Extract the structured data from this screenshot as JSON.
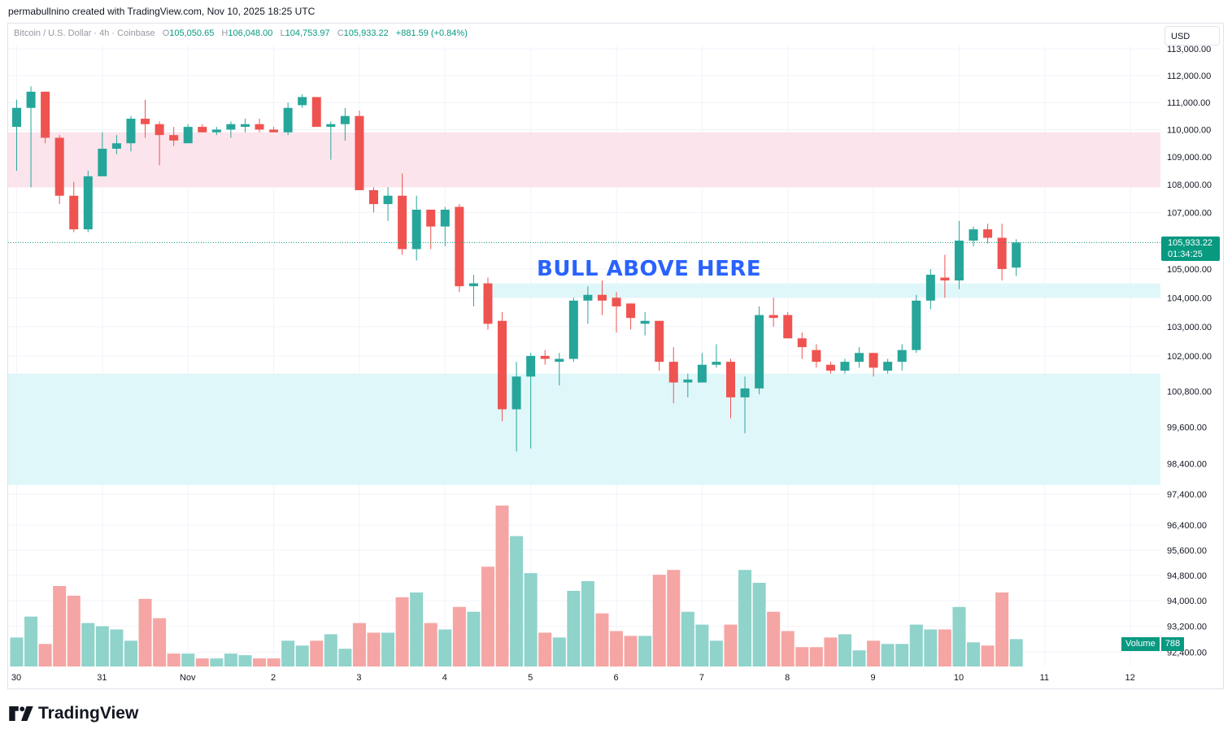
{
  "header": {
    "attribution": "permabullnino created with TradingView.com, Nov 10, 2025 18:25 UTC"
  },
  "legend": {
    "symbol": "Bitcoin / U.S. Dollar · 4h · Coinbase",
    "o_label": "O",
    "o_value": "105,050.65",
    "h_label": "H",
    "h_value": "106,048.00",
    "l_label": "L",
    "l_value": "104,753.97",
    "c_label": "C",
    "c_value": "105,933.22",
    "change": "+881.59 (+0.84%)"
  },
  "currency_button": {
    "label": "USD"
  },
  "last_price": {
    "price": "105,933.22",
    "countdown": "01:34:25"
  },
  "volume_tag": {
    "label": "Volume",
    "value": "788"
  },
  "annotation": {
    "text": "BULL ABOVE HERE"
  },
  "logo": {
    "text": "TradingView",
    "icon": "tradingview-logo-icon"
  },
  "colors": {
    "up": "#26a69a",
    "down": "#ef5350",
    "up_volume": "#8fd3cb",
    "down_volume": "#f5a5a3",
    "resistance_zone": "#fce4ec",
    "support_zone": "#e0f7fa",
    "annotation": "#2962ff",
    "price_line": "#089981"
  },
  "chart_data": {
    "type": "candlestick",
    "interval": "4h",
    "x_ticks": [
      "30",
      "31",
      "Nov",
      "2",
      "3",
      "4",
      "5",
      "6",
      "7",
      "8",
      "9",
      "10",
      "11",
      "12"
    ],
    "y_tick_labels": [
      "113,000.00",
      "112,000.00",
      "111,000.00",
      "110,000.00",
      "109,000.00",
      "108,000.00",
      "107,000.00",
      "105,000.00",
      "104,000.00",
      "103,000.00",
      "102,000.00",
      "100,800.00",
      "99,600.00",
      "98,400.00",
      "97,400.00",
      "96,400.00",
      "95,600.00",
      "94,800.00",
      "94,000.00",
      "93,200.00",
      "92,400.00"
    ],
    "y_tick_values": [
      113000,
      112000,
      111000,
      110000,
      109000,
      108000,
      107000,
      105000,
      104000,
      103000,
      102000,
      100800,
      99600,
      98400,
      97400,
      96400,
      95600,
      94800,
      94000,
      93200,
      92400
    ],
    "log_scale": true,
    "zones": [
      {
        "from": 107900,
        "to": 109900,
        "kind": "resistance"
      },
      {
        "from": 104000,
        "to": 104500,
        "kind": "support"
      },
      {
        "from": 97700,
        "to": 101400,
        "kind": "support"
      }
    ],
    "last_price": 105933.22,
    "candles": [
      {
        "o": 110100,
        "h": 111100,
        "l": 108500,
        "c": 110800
      },
      {
        "o": 110800,
        "h": 111600,
        "l": 107900,
        "c": 111400
      },
      {
        "o": 111400,
        "h": 111400,
        "l": 109500,
        "c": 109700
      },
      {
        "o": 109700,
        "h": 109800,
        "l": 107300,
        "c": 107600
      },
      {
        "o": 107600,
        "h": 108100,
        "l": 106300,
        "c": 106400
      },
      {
        "o": 106400,
        "h": 108500,
        "l": 106300,
        "c": 108300
      },
      {
        "o": 108300,
        "h": 109900,
        "l": 108300,
        "c": 109300
      },
      {
        "o": 109300,
        "h": 109800,
        "l": 109100,
        "c": 109500
      },
      {
        "o": 109500,
        "h": 110500,
        "l": 109200,
        "c": 110400
      },
      {
        "o": 110400,
        "h": 111100,
        "l": 109700,
        "c": 110200
      },
      {
        "o": 110200,
        "h": 110300,
        "l": 108700,
        "c": 109800
      },
      {
        "o": 109800,
        "h": 110100,
        "l": 109400,
        "c": 109600
      },
      {
        "o": 109500,
        "h": 110200,
        "l": 109500,
        "c": 110100
      },
      {
        "o": 110100,
        "h": 110200,
        "l": 109900,
        "c": 109900
      },
      {
        "o": 109900,
        "h": 110100,
        "l": 109800,
        "c": 110000
      },
      {
        "o": 110000,
        "h": 110300,
        "l": 109700,
        "c": 110200
      },
      {
        "o": 110100,
        "h": 110400,
        "l": 109900,
        "c": 110200
      },
      {
        "o": 110200,
        "h": 110400,
        "l": 109900,
        "c": 110000
      },
      {
        "o": 110000,
        "h": 110100,
        "l": 109900,
        "c": 109900
      },
      {
        "o": 109900,
        "h": 111000,
        "l": 109800,
        "c": 110800
      },
      {
        "o": 110900,
        "h": 111300,
        "l": 110800,
        "c": 111200
      },
      {
        "o": 111200,
        "h": 111200,
        "l": 110100,
        "c": 110100
      },
      {
        "o": 110100,
        "h": 110300,
        "l": 108900,
        "c": 110200
      },
      {
        "o": 110200,
        "h": 110800,
        "l": 109600,
        "c": 110500
      },
      {
        "o": 110500,
        "h": 110700,
        "l": 107800,
        "c": 107800
      },
      {
        "o": 107800,
        "h": 107900,
        "l": 107000,
        "c": 107300
      },
      {
        "o": 107300,
        "h": 107900,
        "l": 106700,
        "c": 107600
      },
      {
        "o": 107600,
        "h": 108400,
        "l": 105500,
        "c": 105700
      },
      {
        "o": 105700,
        "h": 107600,
        "l": 105300,
        "c": 107100
      },
      {
        "o": 107100,
        "h": 107100,
        "l": 105700,
        "c": 106500
      },
      {
        "o": 106500,
        "h": 107200,
        "l": 105800,
        "c": 107100
      },
      {
        "o": 107200,
        "h": 107300,
        "l": 104200,
        "c": 104400
      },
      {
        "o": 104400,
        "h": 104800,
        "l": 103700,
        "c": 104500
      },
      {
        "o": 104500,
        "h": 104700,
        "l": 102900,
        "c": 103100
      },
      {
        "o": 103200,
        "h": 103500,
        "l": 99800,
        "c": 100200
      },
      {
        "o": 100200,
        "h": 101800,
        "l": 98800,
        "c": 101300
      },
      {
        "o": 101300,
        "h": 102100,
        "l": 98900,
        "c": 102000
      },
      {
        "o": 102000,
        "h": 102200,
        "l": 101700,
        "c": 101900
      },
      {
        "o": 101800,
        "h": 102100,
        "l": 101000,
        "c": 101900
      },
      {
        "o": 101900,
        "h": 104000,
        "l": 101800,
        "c": 103900
      },
      {
        "o": 103900,
        "h": 104400,
        "l": 103100,
        "c": 104100
      },
      {
        "o": 104100,
        "h": 104600,
        "l": 103400,
        "c": 103900
      },
      {
        "o": 104000,
        "h": 104200,
        "l": 102800,
        "c": 103700
      },
      {
        "o": 103800,
        "h": 103800,
        "l": 102900,
        "c": 103300
      },
      {
        "o": 103100,
        "h": 103500,
        "l": 102700,
        "c": 103200
      },
      {
        "o": 103200,
        "h": 103200,
        "l": 101500,
        "c": 101800
      },
      {
        "o": 101800,
        "h": 102300,
        "l": 100400,
        "c": 101100
      },
      {
        "o": 101100,
        "h": 101400,
        "l": 100600,
        "c": 101200
      },
      {
        "o": 101100,
        "h": 102100,
        "l": 101100,
        "c": 101700
      },
      {
        "o": 101700,
        "h": 102400,
        "l": 101600,
        "c": 101800
      },
      {
        "o": 101800,
        "h": 101900,
        "l": 99900,
        "c": 100600
      },
      {
        "o": 100600,
        "h": 101300,
        "l": 99400,
        "c": 100900
      },
      {
        "o": 100900,
        "h": 103700,
        "l": 100700,
        "c": 103400
      },
      {
        "o": 103400,
        "h": 104000,
        "l": 103000,
        "c": 103300
      },
      {
        "o": 103400,
        "h": 103500,
        "l": 102600,
        "c": 102600
      },
      {
        "o": 102600,
        "h": 102800,
        "l": 101900,
        "c": 102300
      },
      {
        "o": 102200,
        "h": 102400,
        "l": 101600,
        "c": 101800
      },
      {
        "o": 101700,
        "h": 101800,
        "l": 101400,
        "c": 101500
      },
      {
        "o": 101500,
        "h": 101900,
        "l": 101400,
        "c": 101800
      },
      {
        "o": 101800,
        "h": 102300,
        "l": 101600,
        "c": 102100
      },
      {
        "o": 102100,
        "h": 102100,
        "l": 101300,
        "c": 101600
      },
      {
        "o": 101500,
        "h": 101900,
        "l": 101400,
        "c": 101800
      },
      {
        "o": 101800,
        "h": 102400,
        "l": 101500,
        "c": 102200
      },
      {
        "o": 102200,
        "h": 104100,
        "l": 102100,
        "c": 103900
      },
      {
        "o": 103900,
        "h": 105000,
        "l": 103600,
        "c": 104800
      },
      {
        "o": 104700,
        "h": 105500,
        "l": 104000,
        "c": 104600
      },
      {
        "o": 104600,
        "h": 106700,
        "l": 104300,
        "c": 106000
      },
      {
        "o": 106000,
        "h": 106500,
        "l": 105800,
        "c": 106400
      },
      {
        "o": 106400,
        "h": 106600,
        "l": 105900,
        "c": 106100
      },
      {
        "o": 106100,
        "h": 106600,
        "l": 104600,
        "c": 105000
      },
      {
        "o": 105050.65,
        "h": 106048,
        "l": 104753.97,
        "c": 105933.22
      }
    ],
    "volumes": [
      0.18,
      0.31,
      0.14,
      0.5,
      0.44,
      0.27,
      0.25,
      0.23,
      0.16,
      0.42,
      0.3,
      0.08,
      0.08,
      0.05,
      0.05,
      0.08,
      0.07,
      0.05,
      0.05,
      0.16,
      0.13,
      0.16,
      0.2,
      0.11,
      0.27,
      0.21,
      0.21,
      0.43,
      0.46,
      0.27,
      0.23,
      0.37,
      0.34,
      0.62,
      1.0,
      0.81,
      0.58,
      0.21,
      0.18,
      0.47,
      0.53,
      0.33,
      0.22,
      0.19,
      0.19,
      0.57,
      0.6,
      0.34,
      0.26,
      0.16,
      0.26,
      0.6,
      0.52,
      0.34,
      0.22,
      0.12,
      0.12,
      0.18,
      0.2,
      0.1,
      0.16,
      0.14,
      0.14,
      0.26,
      0.23,
      0.23,
      0.37,
      0.15,
      0.13,
      0.46,
      0.17
    ]
  }
}
